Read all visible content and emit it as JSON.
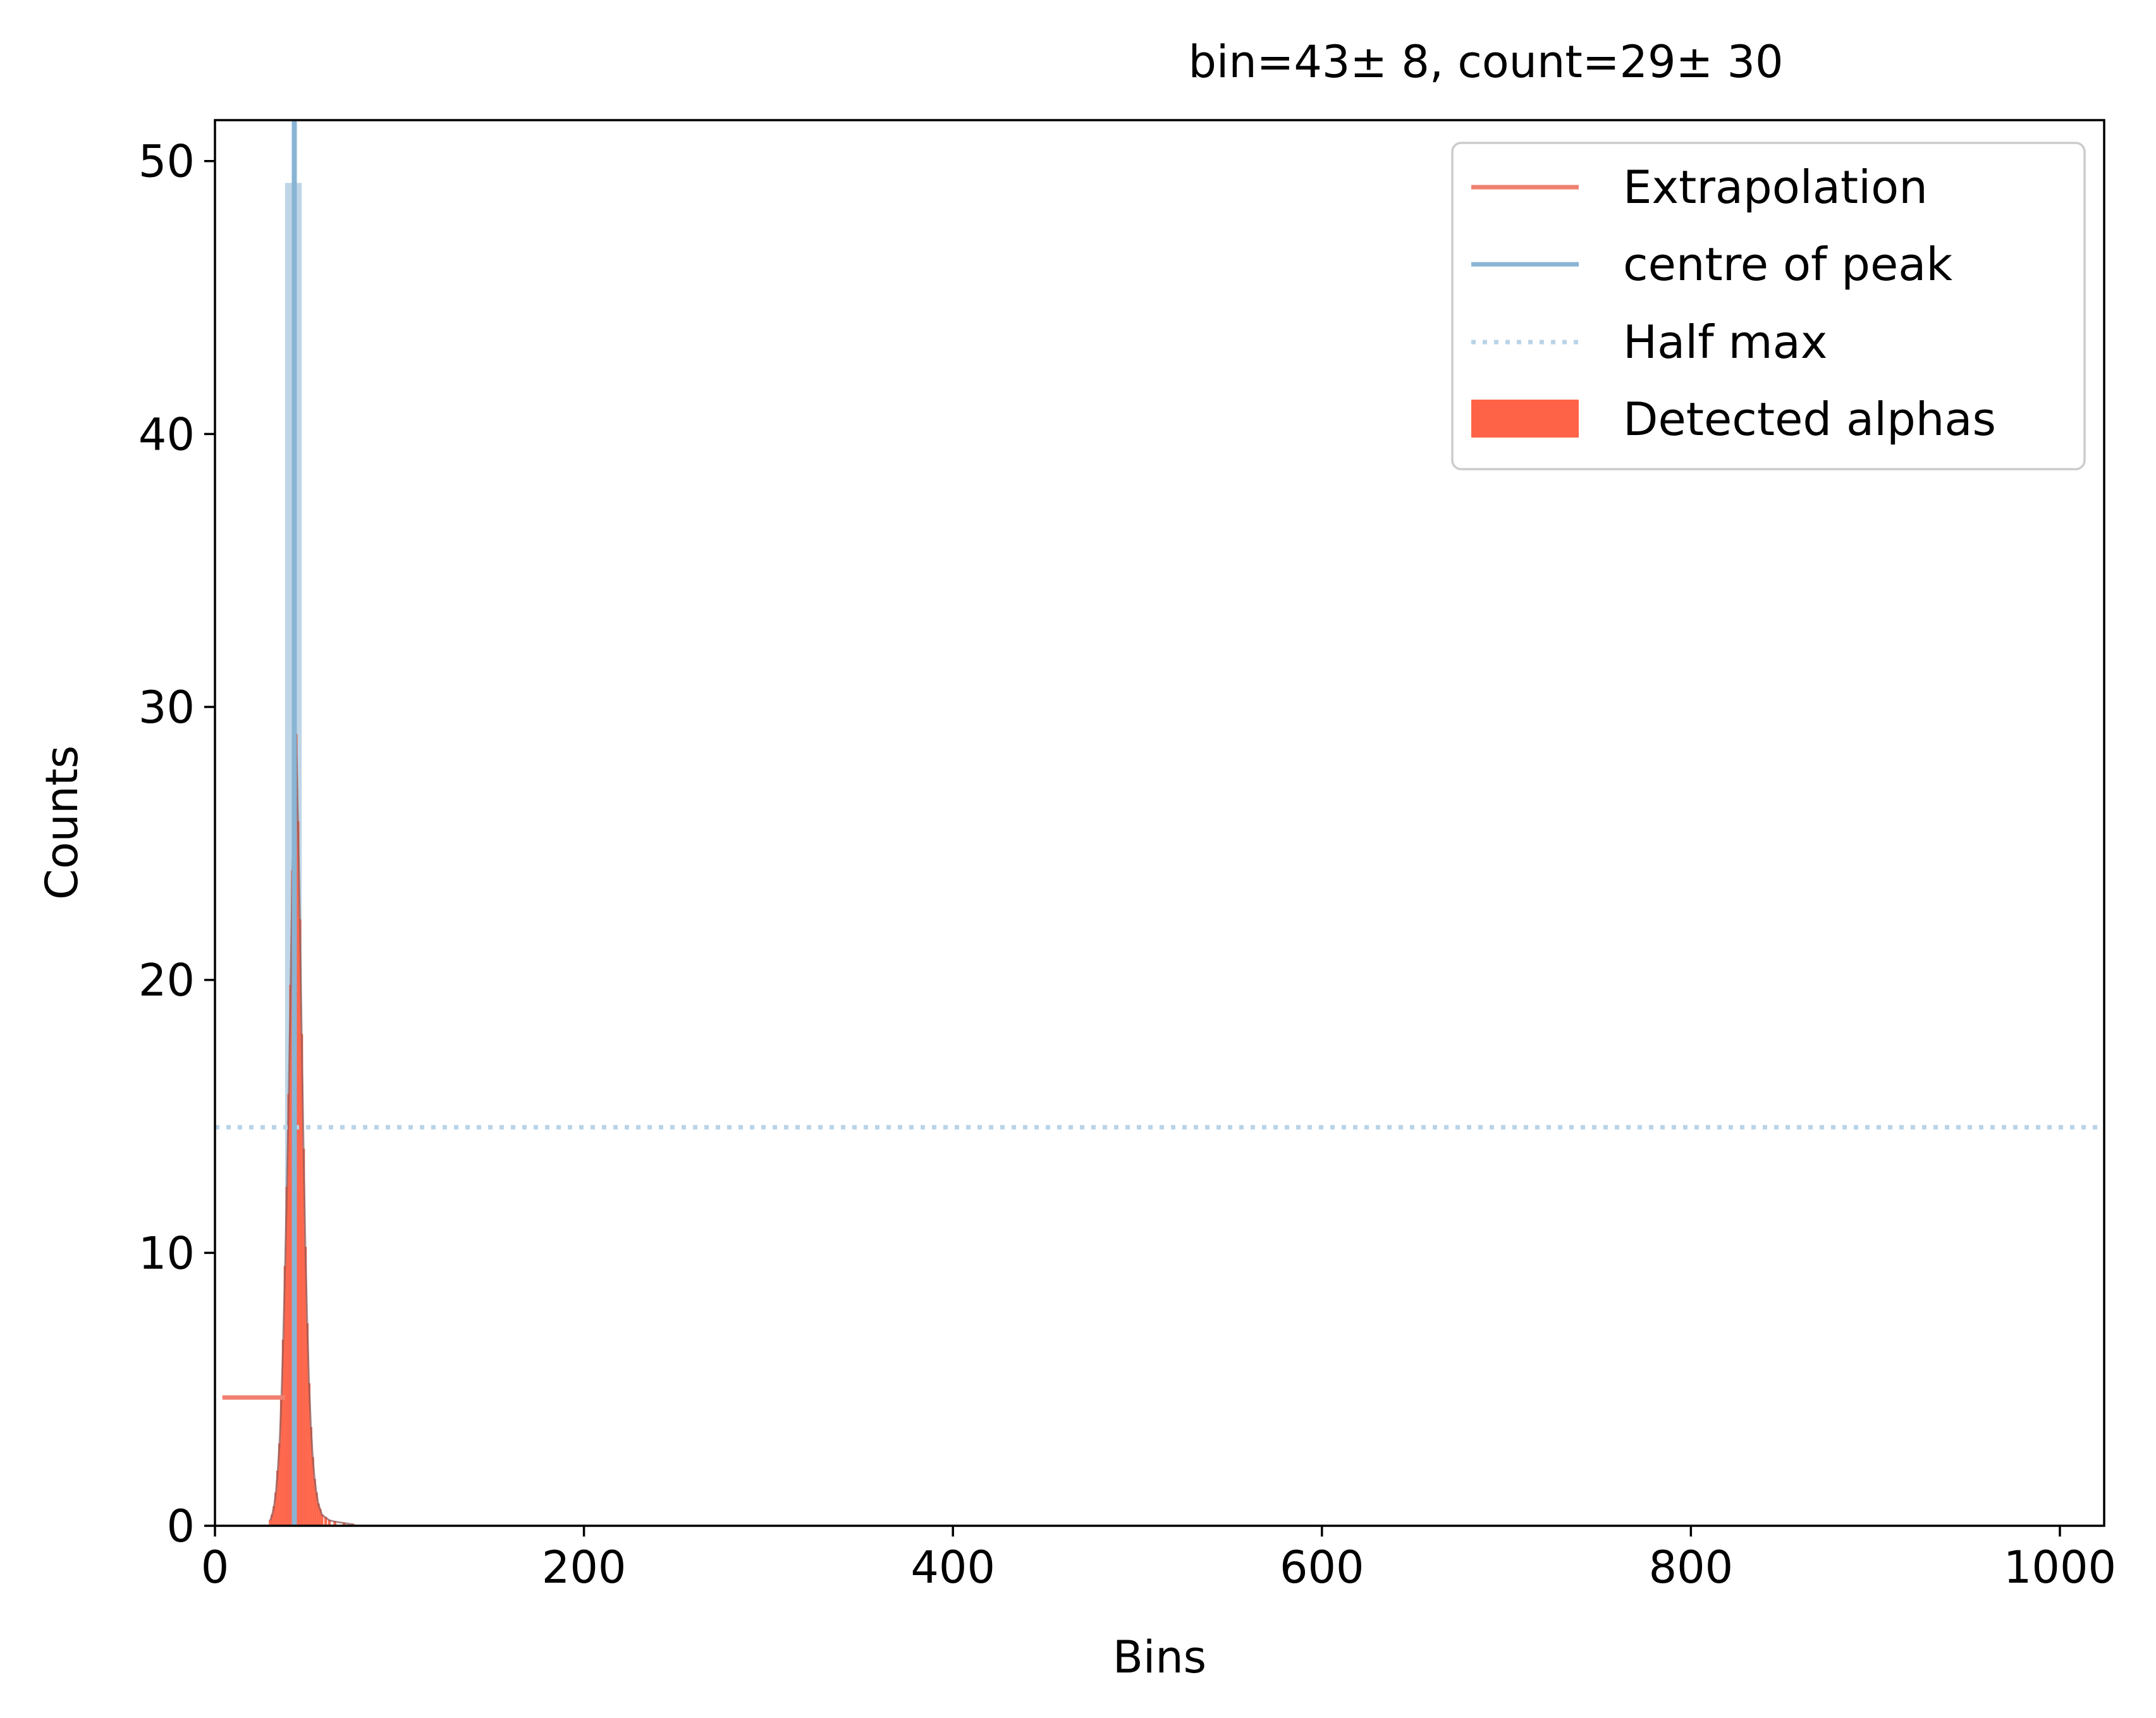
{
  "chart_data": {
    "type": "histogram",
    "title": "bin=43± 8, count=29± 30",
    "xlabel": "Bins",
    "ylabel": "Counts",
    "xlim": [
      0,
      1024
    ],
    "ylim": [
      0,
      51.5
    ],
    "x_ticks": [
      0,
      200,
      400,
      600,
      800,
      1000
    ],
    "y_ticks": [
      0,
      10,
      20,
      30,
      40,
      50
    ],
    "grid": false,
    "legend_position": "top-right",
    "colors": {
      "detected": "#ff6347",
      "extrapolation": "#f08070",
      "centre": "#89b4d4",
      "half_max": "#b9d4e8"
    },
    "series": [
      {
        "name": "Detected alphas",
        "kind": "bars",
        "bin_width": 1,
        "points": [
          [
            30,
            0.2
          ],
          [
            31,
            0.4
          ],
          [
            32,
            0.7
          ],
          [
            33,
            1.2
          ],
          [
            34,
            2.0
          ],
          [
            35,
            3.0
          ],
          [
            36,
            4.6
          ],
          [
            37,
            6.8
          ],
          [
            38,
            9.5
          ],
          [
            39,
            12.4
          ],
          [
            40,
            15.8
          ],
          [
            41,
            19.8
          ],
          [
            42,
            24.0
          ],
          [
            43,
            27.6
          ],
          [
            44,
            29.0
          ],
          [
            45,
            25.8
          ],
          [
            46,
            22.2
          ],
          [
            47,
            18.0
          ],
          [
            48,
            13.8
          ],
          [
            49,
            10.2
          ],
          [
            50,
            7.4
          ],
          [
            51,
            5.2
          ],
          [
            52,
            3.6
          ],
          [
            53,
            2.5
          ],
          [
            54,
            1.7
          ],
          [
            55,
            1.2
          ],
          [
            56,
            0.8
          ],
          [
            57,
            0.6
          ],
          [
            58,
            0.4
          ],
          [
            60,
            0.3
          ],
          [
            62,
            0.2
          ],
          [
            65,
            0.15
          ],
          [
            70,
            0.1
          ],
          [
            75,
            0.05
          ]
        ]
      },
      {
        "name": "Extrapolation",
        "kind": "line",
        "points": [
          [
            4,
            4.7
          ],
          [
            38,
            4.7
          ]
        ]
      },
      {
        "name": "centre of peak",
        "kind": "vline",
        "x": 43
      },
      {
        "name": "Half max",
        "kind": "hline",
        "y": 14.6
      }
    ],
    "overlays": [
      {
        "kind": "band",
        "x0": 38,
        "x1": 47,
        "y": 49.2
      }
    ]
  }
}
